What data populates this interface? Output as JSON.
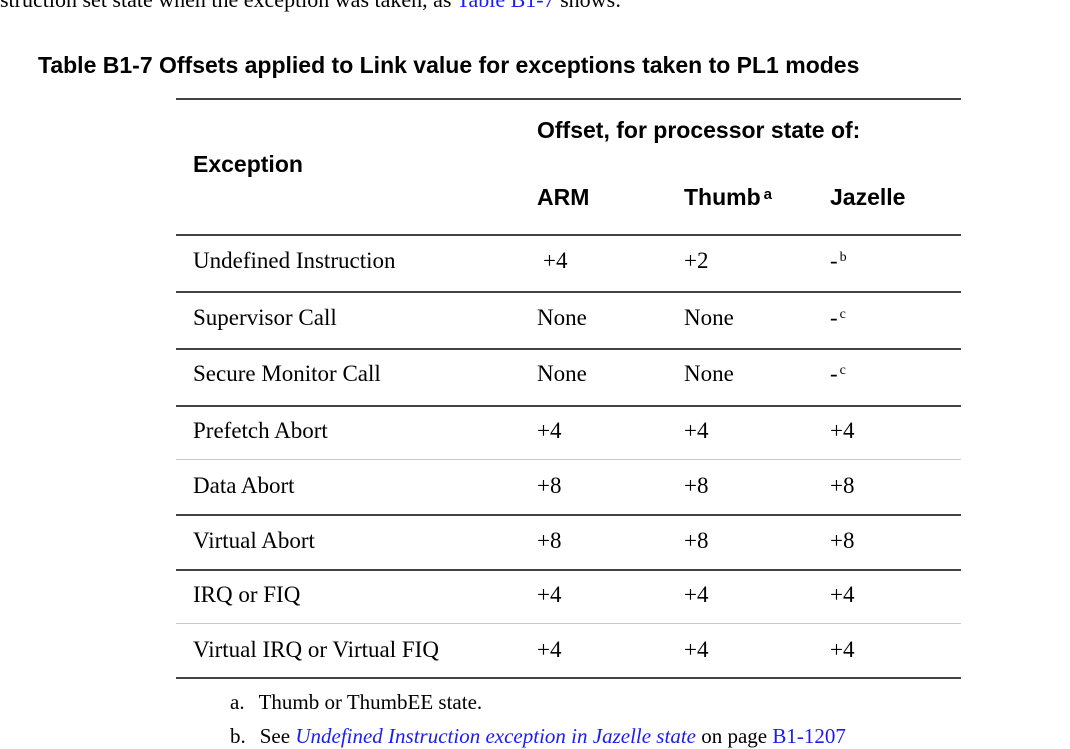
{
  "intro": {
    "before": "struction set state when the exception was taken, as ",
    "link": "Table B1-7",
    "after": " shows:"
  },
  "table": {
    "caption": "Table B1-7 Offsets applied to Link value for exceptions taken to PL1 modes",
    "header": {
      "exception": "Exception",
      "group": "Offset, for processor state of:",
      "arm": "ARM",
      "thumb": "Thumb",
      "thumb_note": "a",
      "jazelle": "Jazelle"
    },
    "rows": [
      {
        "exception": "Undefined Instruction",
        "arm": "+4",
        "thumb": "+2",
        "jazelle": "-",
        "jazelle_note": "b"
      },
      {
        "exception": "Supervisor Call",
        "arm": "None",
        "thumb": "None",
        "jazelle": "-",
        "jazelle_note": "c"
      },
      {
        "exception": "Secure Monitor Call",
        "arm": "None",
        "thumb": "None",
        "jazelle": "-",
        "jazelle_note": "c"
      },
      {
        "exception": "Prefetch Abort",
        "arm": "+4",
        "thumb": "+4",
        "jazelle": "+4",
        "jazelle_note": ""
      },
      {
        "exception": "Data Abort",
        "arm": "+8",
        "thumb": "+8",
        "jazelle": "+8",
        "jazelle_note": ""
      },
      {
        "exception": "Virtual Abort",
        "arm": "+8",
        "thumb": "+8",
        "jazelle": "+8",
        "jazelle_note": ""
      },
      {
        "exception": "IRQ or FIQ",
        "arm": "+4",
        "thumb": "+4",
        "jazelle": "+4",
        "jazelle_note": ""
      },
      {
        "exception": "Virtual IRQ or Virtual FIQ",
        "arm": "+4",
        "thumb": "+4",
        "jazelle": "+4",
        "jazelle_note": ""
      }
    ]
  },
  "footnotes": [
    {
      "marker": "a.",
      "text": "Thumb or ThumbEE state."
    },
    {
      "marker": "b.",
      "pre": "See ",
      "link": "Undefined Instruction exception in Jazelle state",
      "mid": " on page ",
      "page": "B1-1207"
    }
  ]
}
